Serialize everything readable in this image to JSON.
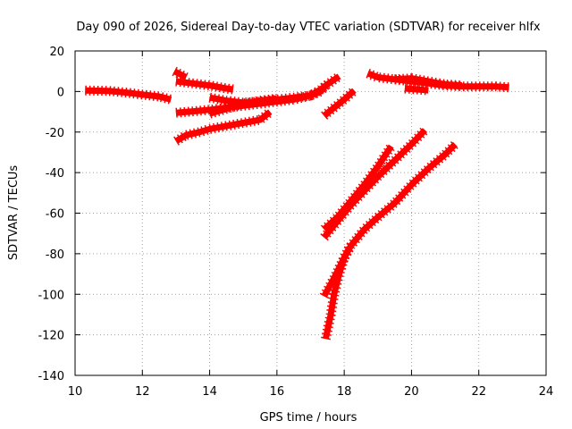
{
  "chart_data": {
    "type": "scatter",
    "title": "Day 090 of 2026, Sidereal Day-to-day VTEC variation (SDTVAR) for receiver hlfx",
    "xlabel": "GPS time / hours",
    "ylabel": "SDTVAR / TECUs",
    "xlim": [
      10,
      24
    ],
    "ylim": [
      -140,
      20
    ],
    "x_ticks": [
      10,
      12,
      14,
      16,
      18,
      20,
      22,
      24
    ],
    "y_ticks": [
      -140,
      -120,
      -100,
      -80,
      -60,
      -40,
      -20,
      0,
      20
    ],
    "x_tick_labels": [
      "10",
      "12",
      "14",
      "16",
      "18",
      "20",
      "22",
      "24"
    ],
    "y_tick_labels": [
      "-140",
      "-120",
      "-100",
      "-80",
      "-60",
      "-40",
      "-20",
      "0",
      "20"
    ],
    "grid": true,
    "legend": "none",
    "marker": "plus",
    "color": "#ff0000",
    "series": [
      {
        "points": [
          [
            10.3,
            0.5
          ],
          [
            11.0,
            0.3
          ],
          [
            11.5,
            -0.5
          ],
          [
            12.0,
            -1.5
          ],
          [
            12.5,
            -2.5
          ],
          [
            12.85,
            -4.0
          ]
        ]
      },
      {
        "points": [
          [
            12.95,
            10.0
          ],
          [
            13.3,
            7.0
          ]
        ]
      },
      {
        "points": [
          [
            13.0,
            5.0
          ],
          [
            13.5,
            4.0
          ],
          [
            14.0,
            3.0
          ],
          [
            14.5,
            1.5
          ],
          [
            14.7,
            1.0
          ]
        ]
      },
      {
        "points": [
          [
            13.0,
            -10.5
          ],
          [
            13.5,
            -9.8
          ],
          [
            14.0,
            -9.0
          ],
          [
            14.5,
            -8.0
          ],
          [
            15.0,
            -7.0
          ],
          [
            15.5,
            -6.0
          ],
          [
            16.0,
            -5.0
          ],
          [
            16.5,
            -4.0
          ],
          [
            17.0,
            -2.0
          ],
          [
            17.3,
            0.0
          ],
          [
            17.45,
            3.0
          ]
        ]
      },
      {
        "points": [
          [
            14.0,
            -3.0
          ],
          [
            14.5,
            -4.5
          ],
          [
            15.0,
            -5.5
          ],
          [
            15.5,
            -5.0
          ],
          [
            16.0,
            -4.0
          ],
          [
            16.5,
            -3.0
          ],
          [
            17.0,
            -2.0
          ],
          [
            17.3,
            1.0
          ],
          [
            17.5,
            3.5
          ],
          [
            17.85,
            7.5
          ]
        ]
      },
      {
        "points": [
          [
            13.0,
            -24.5
          ],
          [
            13.3,
            -21.5
          ],
          [
            13.7,
            -20.0
          ],
          [
            14.0,
            -18.5
          ],
          [
            14.5,
            -17.0
          ],
          [
            15.0,
            -15.5
          ],
          [
            15.5,
            -14.0
          ],
          [
            15.8,
            -10.0
          ]
        ]
      },
      {
        "points": [
          [
            14.0,
            -11.0
          ],
          [
            14.5,
            -8.5
          ],
          [
            15.0,
            -6.0
          ],
          [
            15.5,
            -4.5
          ],
          [
            16.0,
            -3.5
          ]
        ]
      },
      {
        "points": [
          [
            17.4,
            -12.0
          ],
          [
            17.7,
            -8.0
          ],
          [
            18.0,
            -4.0
          ],
          [
            18.3,
            0.5
          ]
        ]
      },
      {
        "points": [
          [
            18.7,
            9.0
          ],
          [
            19.0,
            7.0
          ],
          [
            19.5,
            6.0
          ],
          [
            20.0,
            5.0
          ],
          [
            20.5,
            4.0
          ],
          [
            21.0,
            3.0
          ],
          [
            21.5,
            2.5
          ],
          [
            22.0,
            2.5
          ],
          [
            22.5,
            2.5
          ],
          [
            22.9,
            2.0
          ]
        ]
      },
      {
        "points": [
          [
            19.5,
            6.0
          ],
          [
            20.0,
            6.5
          ],
          [
            20.5,
            5.0
          ],
          [
            21.0,
            3.5
          ],
          [
            21.5,
            3.0
          ]
        ]
      },
      {
        "points": [
          [
            19.8,
            1.5
          ],
          [
            20.2,
            1.0
          ],
          [
            20.5,
            0.5
          ]
        ]
      },
      {
        "points": [
          [
            17.4,
            -68.0
          ],
          [
            17.8,
            -62.0
          ],
          [
            18.2,
            -54.0
          ],
          [
            18.6,
            -46.0
          ],
          [
            19.0,
            -37.0
          ],
          [
            19.4,
            -27.0
          ]
        ]
      },
      {
        "points": [
          [
            17.4,
            -72.0
          ],
          [
            17.8,
            -64.0
          ],
          [
            18.2,
            -56.0
          ],
          [
            18.6,
            -49.0
          ],
          [
            19.0,
            -42.0
          ],
          [
            19.5,
            -34.0
          ],
          [
            20.0,
            -26.0
          ],
          [
            20.4,
            -19.0
          ]
        ]
      },
      {
        "points": [
          [
            17.4,
            -101.0
          ],
          [
            17.7,
            -92.0
          ],
          [
            18.0,
            -82.0
          ],
          [
            18.2,
            -76.0
          ],
          [
            18.6,
            -68.0
          ],
          [
            19.0,
            -62.0
          ],
          [
            19.5,
            -55.0
          ],
          [
            20.0,
            -46.0
          ],
          [
            20.5,
            -38.0
          ],
          [
            21.0,
            -31.0
          ],
          [
            21.3,
            -26.0
          ]
        ]
      },
      {
        "points": [
          [
            17.45,
            -122.0
          ],
          [
            17.6,
            -110.0
          ],
          [
            17.7,
            -100.0
          ],
          [
            17.85,
            -90.0
          ],
          [
            18.0,
            -82.0
          ],
          [
            18.15,
            -77.0
          ]
        ]
      }
    ]
  }
}
